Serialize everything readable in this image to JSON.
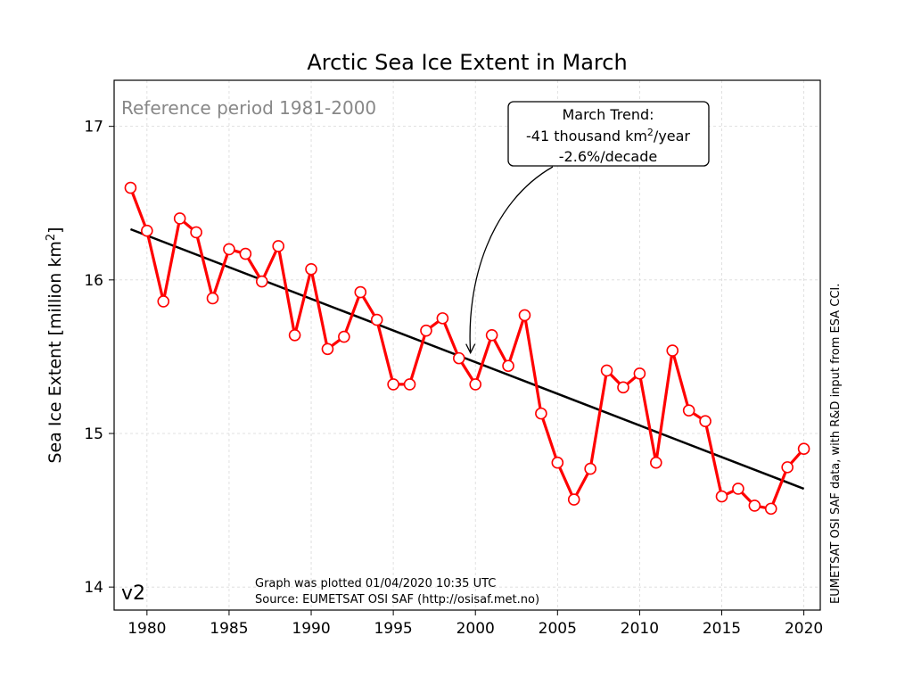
{
  "chart_data": {
    "type": "line",
    "title": "Arctic Sea Ice Extent in March",
    "ylabel_main": "Sea Ice Extent [million km",
    "ylabel_sup": "2",
    "ylabel_end": "]",
    "xlim": [
      1978,
      2021
    ],
    "ylim": [
      13.85,
      17.3
    ],
    "xticks": [
      1980,
      1985,
      1990,
      1995,
      2000,
      2005,
      2010,
      2015,
      2020
    ],
    "yticks": [
      14,
      15,
      16,
      17
    ],
    "grid": true,
    "series": [
      {
        "x": [
          1979,
          1980,
          1981,
          1982,
          1983,
          1984,
          1985,
          1986,
          1987,
          1988,
          1989,
          1990,
          1991,
          1992,
          1993,
          1994,
          1995,
          1996,
          1997,
          1998,
          1999,
          2000,
          2001,
          2002,
          2003,
          2004,
          2005,
          2006,
          2007,
          2008,
          2009,
          2010,
          2011,
          2012,
          2013,
          2014,
          2015,
          2016,
          2017,
          2018,
          2019,
          2020
        ],
        "values": [
          16.6,
          16.32,
          15.86,
          16.4,
          16.31,
          15.88,
          16.2,
          16.17,
          15.99,
          16.22,
          15.64,
          16.07,
          15.55,
          15.63,
          15.92,
          15.74,
          15.32,
          15.32,
          15.67,
          15.75,
          15.49,
          15.32,
          15.64,
          15.44,
          15.77,
          15.13,
          14.81,
          14.57,
          14.77,
          15.41,
          15.3,
          15.39,
          14.81,
          15.54,
          15.15,
          15.08,
          14.59,
          14.64,
          14.53,
          14.51,
          14.78,
          14.9
        ],
        "color": "#ff0000"
      }
    ],
    "trend": {
      "x": [
        1979,
        2020
      ],
      "values": [
        16.33,
        14.64
      ],
      "color": "#000000"
    },
    "annotation": {
      "line1": "March Trend:",
      "line2_pre": "-41 thousand km",
      "line2_sup": "2",
      "line2_post": "/year",
      "line3": "-2.6%/decade",
      "arrow_target_x": 1999.7,
      "arrow_target_y": 15.49
    },
    "reference_text": "Reference period 1981-2000",
    "version_text": "v2",
    "plotted_text": "Graph was plotted 01/04/2020 10:35 UTC",
    "source_text": "Source: EUMETSAT OSI SAF (http://osisaf.met.no)",
    "side_text": "EUMETSAT OSI SAF data, with R&D input from ESA CCI."
  }
}
